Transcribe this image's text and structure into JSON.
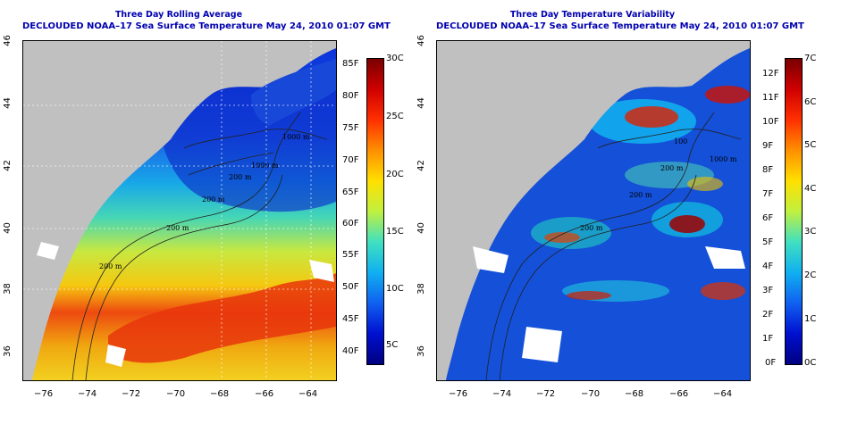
{
  "left_panel": {
    "title_line1": "Three Day Rolling Average",
    "title_line2": "DECLOUDED NOAA–17 Sea Surface Temperature May 24, 2010 01:07 GMT",
    "contour_labels": [
      "1000 m",
      "200 m",
      "200 m",
      "200 m",
      "200 m",
      "1000 m"
    ],
    "colorbar_f": [
      "85F",
      "80F",
      "75F",
      "70F",
      "65F",
      "60F",
      "55F",
      "50F",
      "45F",
      "40F"
    ],
    "colorbar_c": [
      "30C",
      "25C",
      "20C",
      "15C",
      "10C",
      "5C"
    ]
  },
  "right_panel": {
    "title_line1": "Three Day Temperature Variability",
    "title_line2": "DECLOUDED NOAA–17 Sea Surface Temperature May 24, 2010 01:07 GMT",
    "contour_labels": [
      "100",
      "200 m",
      "200 m",
      "1000 m",
      "200 m"
    ],
    "colorbar_f": [
      "12F",
      "11F",
      "10F",
      "9F",
      "8F",
      "7F",
      "6F",
      "5F",
      "4F",
      "3F",
      "2F",
      "1F",
      "0F"
    ],
    "colorbar_c": [
      "7C",
      "6C",
      "5C",
      "4C",
      "3C",
      "2C",
      "1C",
      "0C"
    ]
  },
  "axes": {
    "x_ticks": [
      "−76",
      "−74",
      "−72",
      "−70",
      "−68",
      "−66",
      "−64"
    ],
    "y_ticks": [
      "36",
      "38",
      "40",
      "42",
      "44",
      "46"
    ]
  },
  "colors": {
    "title": "#0000b0",
    "land": "#c0c0c0",
    "cold": "#0000a0",
    "warm": "#c00000"
  }
}
